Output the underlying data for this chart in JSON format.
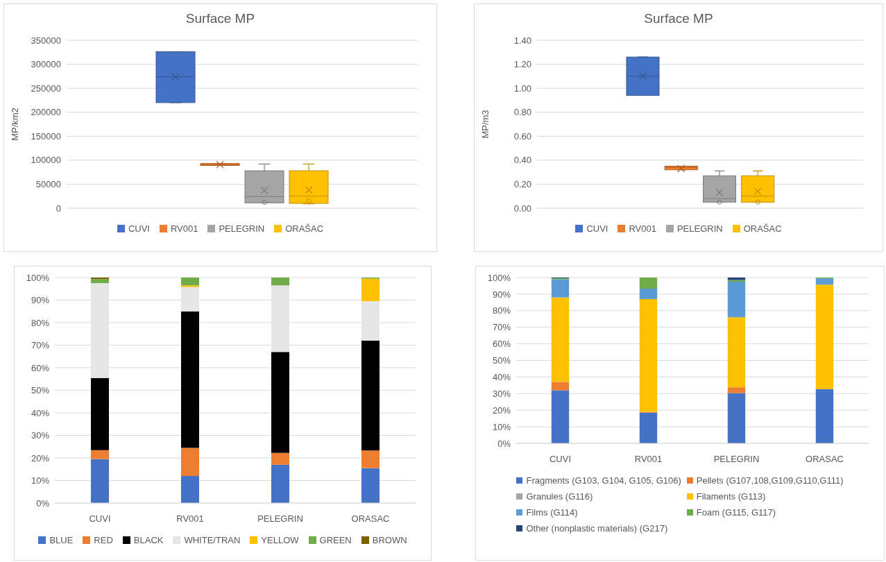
{
  "chart_data": [
    {
      "type": "box",
      "title": "Surface MP",
      "ylabel": "MP/km2",
      "categories": [
        null
      ],
      "ylim": [
        0,
        350000
      ],
      "yticks": [
        0,
        50000,
        100000,
        150000,
        200000,
        250000,
        300000,
        350000
      ],
      "grid": "y",
      "legend": "bottom",
      "series": [
        {
          "name": "CUVI",
          "color": "#4472c4",
          "boxes": [
            {
              "low": 220000,
              "q1": 220000,
              "median": 274000,
              "q3": 326000,
              "high": 326000,
              "mean": 274000
            }
          ]
        },
        {
          "name": "RV001",
          "color": "#ed7d31",
          "boxes": [
            {
              "low": 89000,
              "q1": 89000,
              "median": 91000,
              "q3": 93000,
              "high": 93000,
              "mean": 91000
            }
          ]
        },
        {
          "name": "PELEGRIN",
          "color": "#a5a5a5",
          "boxes": [
            {
              "low": 11000,
              "q1": 11000,
              "median": 24000,
              "q3": 78000,
              "high": 92000,
              "mean": 37000,
              "outliers": [
                12000
              ]
            }
          ]
        },
        {
          "name": "ORAŠAC",
          "color": "#ffc000",
          "boxes": [
            {
              "low": 9000,
              "q1": 10000,
              "median": 25000,
              "q3": 78000,
              "high": 92000,
              "mean": 38000,
              "outliers": [
                15000
              ]
            }
          ]
        }
      ]
    },
    {
      "type": "box",
      "title": "Surface MP",
      "ylabel": "MP/m3",
      "categories": [
        null
      ],
      "ylim": [
        0,
        1.4
      ],
      "yticks": [
        {
          "value": 0,
          "label": "0.00"
        },
        {
          "value": 0.2,
          "label": "0.20"
        },
        {
          "value": 0.4,
          "label": "0.40"
        },
        {
          "value": 0.6,
          "label": "0.60"
        },
        {
          "value": 0.8,
          "label": "0.80"
        },
        {
          "value": 1,
          "label": "1.00"
        },
        {
          "value": 1.2,
          "label": "1.20"
        },
        {
          "value": 1.4,
          "label": "1.40"
        }
      ],
      "grid": "y",
      "legend": "bottom",
      "series": [
        {
          "name": "CUVI",
          "color": "#4472c4",
          "boxes": [
            {
              "low": 0.94,
              "q1": 0.94,
              "median": 1.1,
              "q3": 1.26,
              "high": 1.26,
              "mean": 1.1
            }
          ]
        },
        {
          "name": "RV001",
          "color": "#ed7d31",
          "boxes": [
            {
              "low": 0.32,
              "q1": 0.32,
              "median": 0.34,
              "q3": 0.35,
              "high": 0.35,
              "mean": 0.33
            }
          ]
        },
        {
          "name": "PELEGRIN",
          "color": "#a5a5a5",
          "boxes": [
            {
              "low": 0.05,
              "q1": 0.05,
              "median": 0.08,
              "q3": 0.27,
              "high": 0.31,
              "mean": 0.13,
              "outliers": [
                0.05
              ]
            }
          ]
        },
        {
          "name": "ORAŠAC",
          "color": "#ffc000",
          "boxes": [
            {
              "low": 0.05,
              "q1": 0.05,
              "median": 0.1,
              "q3": 0.27,
              "high": 0.31,
              "mean": 0.14,
              "outliers": [
                0.05
              ]
            }
          ]
        }
      ]
    },
    {
      "type": "bar",
      "stacked": true,
      "categories": [
        "CUVI",
        "RV001",
        "PELEGRIN",
        "ORASAC"
      ],
      "ylim": [
        0,
        100
      ],
      "yticks": [
        {
          "value": 0,
          "label": "0%"
        },
        {
          "value": 10,
          "label": "10%"
        },
        {
          "value": 20,
          "label": "20%"
        },
        {
          "value": 30,
          "label": "30%"
        },
        {
          "value": 40,
          "label": "40%"
        },
        {
          "value": 50,
          "label": "50%"
        },
        {
          "value": 60,
          "label": "60%"
        },
        {
          "value": 70,
          "label": "70%"
        },
        {
          "value": 80,
          "label": "80%"
        },
        {
          "value": 90,
          "label": "90%"
        },
        {
          "value": 100,
          "label": "100%"
        }
      ],
      "grid": "y",
      "legend": "bottom",
      "series": [
        {
          "name": "BLUE",
          "color": "#4472c4",
          "values": [
            19.5,
            12,
            17,
            15.5
          ]
        },
        {
          "name": "RED",
          "color": "#ed7d31",
          "values": [
            4,
            12.5,
            5.2,
            7.8
          ]
        },
        {
          "name": "BLACK",
          "color": "#000000",
          "values": [
            32,
            60.5,
            44.8,
            48.7
          ]
        },
        {
          "name": "WHITE/TRAN",
          "color": "#e7e6e6",
          "values": [
            42,
            10.8,
            29.5,
            17.5
          ]
        },
        {
          "name": "YELLOW",
          "color": "#ffc000",
          "values": [
            0,
            0.7,
            0,
            10
          ]
        },
        {
          "name": "GREEN",
          "color": "#70ad47",
          "values": [
            1.8,
            3.5,
            3.5,
            0.5
          ]
        },
        {
          "name": "BROWN",
          "color": "#7f6000",
          "values": [
            0.7,
            0,
            0,
            0
          ]
        }
      ]
    },
    {
      "type": "bar",
      "stacked": true,
      "categories": [
        "CUVI",
        "RV001",
        "PELEGRIN",
        "ORASAC"
      ],
      "ylim": [
        0,
        100
      ],
      "yticks": [
        {
          "value": 0,
          "label": "0%"
        },
        {
          "value": 10,
          "label": "10%"
        },
        {
          "value": 20,
          "label": "20%"
        },
        {
          "value": 30,
          "label": "30%"
        },
        {
          "value": 40,
          "label": "40%"
        },
        {
          "value": 50,
          "label": "50%"
        },
        {
          "value": 60,
          "label": "60%"
        },
        {
          "value": 70,
          "label": "70%"
        },
        {
          "value": 80,
          "label": "80%"
        },
        {
          "value": 90,
          "label": "90%"
        },
        {
          "value": 100,
          "label": "100%"
        }
      ],
      "grid": "y",
      "legend": "bottom",
      "series": [
        {
          "name": "Fragments (G103, G104, G105, G106)",
          "color": "#4472c4",
          "values": [
            32,
            18.5,
            30.3,
            32.7
          ]
        },
        {
          "name": "Pellets (G107,108,G109,G110,G111)",
          "color": "#ed7d31",
          "values": [
            5,
            0.5,
            3.5,
            0
          ]
        },
        {
          "name": "Granules (G116)",
          "color": "#a5a5a5",
          "values": [
            0,
            0,
            0,
            0
          ]
        },
        {
          "name": "Filaments (G113)",
          "color": "#ffc000",
          "values": [
            51,
            68,
            42.2,
            63
          ]
        },
        {
          "name": "Films (G114)",
          "color": "#5b9bd5",
          "values": [
            11,
            6.3,
            21.5,
            3.8
          ]
        },
        {
          "name": "Foam (G115, G117)",
          "color": "#70ad47",
          "values": [
            0.6,
            6.7,
            1,
            0.5
          ]
        },
        {
          "name": "Other (nonplastic materials) (G217)",
          "color": "#264478",
          "values": [
            0.4,
            0,
            1.5,
            0
          ]
        }
      ]
    }
  ]
}
